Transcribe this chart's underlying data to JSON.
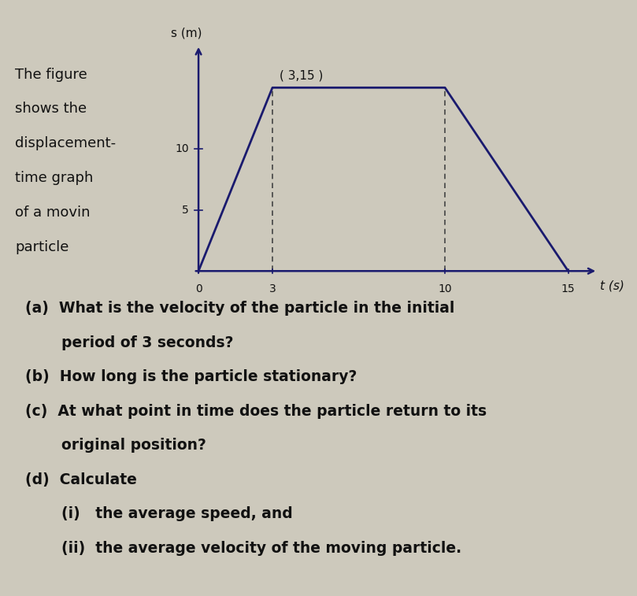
{
  "graph_points": [
    [
      0,
      0
    ],
    [
      3,
      15
    ],
    [
      10,
      15
    ],
    [
      15,
      0
    ]
  ],
  "dashed_t": [
    3,
    10
  ],
  "dashed_s": 15,
  "annotation_text": "( 3,15 )",
  "ytick_labels": [
    "5",
    "10"
  ],
  "ytick_vals": [
    5,
    10
  ],
  "xtick_labels": [
    "0",
    "3",
    "10",
    "15"
  ],
  "xtick_vals": [
    0,
    3,
    10,
    15
  ],
  "ylabel": "s (m)",
  "xlabel": "t (s)",
  "xlim": [
    -0.3,
    16.5
  ],
  "ylim": [
    -0.5,
    19
  ],
  "line_color": "#1a1a6e",
  "dashed_color": "#444444",
  "background_color": "#cdc9bc",
  "text_color": "#111111",
  "desc_lines": [
    "The figure",
    "shows the",
    "displacement-",
    "time graph",
    "of a movin",
    "particle"
  ],
  "q_lines": [
    {
      "indent": 0,
      "text": "(a)  What is the velocity of the particle in the initial"
    },
    {
      "indent": 1,
      "text": "period of 3 seconds?"
    },
    {
      "indent": 0,
      "text": "(b)  How long is the particle stationary?"
    },
    {
      "indent": 0,
      "text": "(c)  At what point in time does the particle return to its"
    },
    {
      "indent": 1,
      "text": "original position?"
    },
    {
      "indent": 0,
      "text": "(d)  Calculate"
    },
    {
      "indent": 1,
      "text": "(i)   the average speed, and"
    },
    {
      "indent": 1,
      "text": "(ii)  the average velocity of the moving particle."
    }
  ],
  "fig_width": 8.09,
  "fig_height": 7.57,
  "dpi": 100
}
